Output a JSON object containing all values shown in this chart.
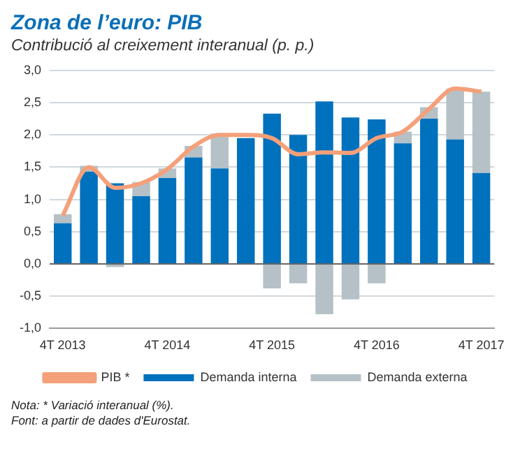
{
  "chart_data": {
    "type": "bar",
    "title": "Zona de l’euro: PIB",
    "subtitle": "Contribució al creixement interanual (p. p.)",
    "categories": [
      "4T 2013",
      null,
      null,
      null,
      "4T 2014",
      null,
      null,
      null,
      "4T 2015",
      null,
      null,
      null,
      "4T 2016",
      null,
      null,
      null,
      "4T 2017"
    ],
    "series": [
      {
        "name": "Demanda interna",
        "color": "#0071bc",
        "values": [
          0.63,
          1.43,
          1.25,
          1.05,
          1.33,
          1.65,
          1.48,
          1.95,
          2.33,
          2.0,
          2.52,
          2.27,
          2.24,
          1.87,
          2.25,
          1.93,
          1.41
        ]
      },
      {
        "name": "Demanda externa",
        "color": "#b5c1c6",
        "values": [
          0.14,
          0.09,
          -0.05,
          0.22,
          0.15,
          0.18,
          0.54,
          null,
          -0.38,
          -0.3,
          -0.78,
          -0.55,
          -0.3,
          0.18,
          0.18,
          0.79,
          1.26
        ]
      },
      {
        "name": "PIB *",
        "type": "line",
        "color": "#f4a07a",
        "values": [
          0.75,
          1.5,
          1.18,
          1.25,
          1.47,
          1.82,
          2.0,
          2.0,
          1.95,
          1.7,
          1.73,
          1.72,
          1.95,
          2.05,
          2.4,
          2.72,
          2.67
        ]
      }
    ],
    "stacked": true,
    "ylim": [
      -1.0,
      3.0
    ],
    "yticks": [
      {
        "value": -1.0,
        "label": "-1,0"
      },
      {
        "value": -0.5,
        "label": "-0,5"
      },
      {
        "value": 0,
        "label": "0,0"
      },
      {
        "value": 0.5,
        "label": "0,5"
      },
      {
        "value": 1.0,
        "label": "1,0"
      },
      {
        "value": 1.5,
        "label": "1,5"
      },
      {
        "value": 2.0,
        "label": "2,0"
      },
      {
        "value": 2.5,
        "label": "2,5"
      },
      {
        "value": 3.0,
        "label": "3,0"
      }
    ],
    "grid": "y",
    "legend": "bottom",
    "marker": "none",
    "annotations": [
      "Nota: * Variació interanual (%).",
      "Font: a partir de dades d'Eurostat."
    ]
  }
}
